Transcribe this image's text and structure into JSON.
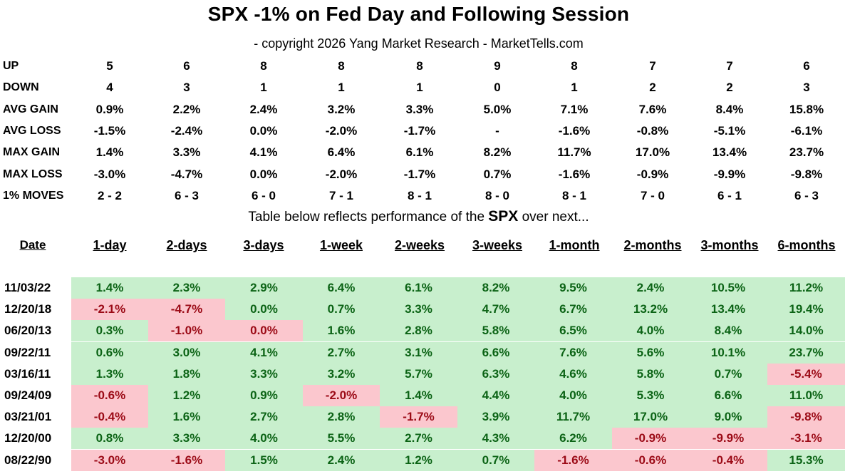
{
  "title": "SPX -1% on Fed Day and Following Session",
  "subtitle": "- copyright 2026 Yang Market Research - MarketTells.com",
  "note": {
    "prefix": "Table below reflects performance of the ",
    "emph": "SPX",
    "suffix": " over next..."
  },
  "stats": [
    {
      "label": "UP",
      "values": [
        "5",
        "6",
        "8",
        "8",
        "8",
        "9",
        "8",
        "7",
        "7",
        "6"
      ]
    },
    {
      "label": "DOWN",
      "values": [
        "4",
        "3",
        "1",
        "1",
        "1",
        "0",
        "1",
        "2",
        "2",
        "3"
      ]
    },
    {
      "label": "AVG GAIN",
      "values": [
        "0.9%",
        "2.2%",
        "2.4%",
        "3.2%",
        "3.3%",
        "5.0%",
        "7.1%",
        "7.6%",
        "8.4%",
        "15.8%"
      ]
    },
    {
      "label": "AVG LOSS",
      "values": [
        "-1.5%",
        "-2.4%",
        "0.0%",
        "-2.0%",
        "-1.7%",
        "-",
        "-1.6%",
        "-0.8%",
        "-5.1%",
        "-6.1%"
      ]
    },
    {
      "label": "MAX GAIN",
      "values": [
        "1.4%",
        "3.3%",
        "4.1%",
        "6.4%",
        "6.1%",
        "8.2%",
        "11.7%",
        "17.0%",
        "13.4%",
        "23.7%"
      ]
    },
    {
      "label": "MAX LOSS",
      "values": [
        "-3.0%",
        "-4.7%",
        "0.0%",
        "-2.0%",
        "-1.7%",
        "0.7%",
        "-1.6%",
        "-0.9%",
        "-9.9%",
        "-9.8%"
      ]
    },
    {
      "label": "1% MOVES",
      "values": [
        "2 - 2",
        "6 - 3",
        "6 - 0",
        "7 - 1",
        "8 - 1",
        "8 - 0",
        "8 - 1",
        "7 - 0",
        "6 - 1",
        "6 - 3"
      ]
    }
  ],
  "colors": {
    "positive_bg": "#c8efcd",
    "positive_text": "#0b6315",
    "negative_bg": "#fbc7ce",
    "negative_text": "#9b0a16"
  },
  "chart_data": {
    "type": "table",
    "title": "SPX -1% on Fed Day and Following Session",
    "columns": [
      "Date",
      "1-day",
      "2-days",
      "3-days",
      "1-week",
      "2-weeks",
      "3-weeks",
      "1-month",
      "2-months",
      "3-months",
      "6-months"
    ],
    "rows": [
      {
        "date": "11/03/22",
        "values": [
          "1.4%",
          "2.3%",
          "2.9%",
          "6.4%",
          "6.1%",
          "8.2%",
          "9.5%",
          "2.4%",
          "10.5%",
          "11.2%"
        ],
        "neg": [
          false,
          false,
          false,
          false,
          false,
          false,
          false,
          false,
          false,
          false
        ]
      },
      {
        "date": "12/20/18",
        "values": [
          "-2.1%",
          "-4.7%",
          "0.0%",
          "0.7%",
          "3.3%",
          "4.7%",
          "6.7%",
          "13.2%",
          "13.4%",
          "19.4%"
        ],
        "neg": [
          true,
          true,
          false,
          false,
          false,
          false,
          false,
          false,
          false,
          false
        ]
      },
      {
        "date": "06/20/13",
        "values": [
          "0.3%",
          "-1.0%",
          "0.0%",
          "1.6%",
          "2.8%",
          "5.8%",
          "6.5%",
          "4.0%",
          "8.4%",
          "14.0%"
        ],
        "neg": [
          false,
          true,
          true,
          false,
          false,
          false,
          false,
          false,
          false,
          false
        ]
      },
      {
        "date": "09/22/11",
        "values": [
          "0.6%",
          "3.0%",
          "4.1%",
          "2.7%",
          "3.1%",
          "6.6%",
          "7.6%",
          "5.6%",
          "10.1%",
          "23.7%"
        ],
        "neg": [
          false,
          false,
          false,
          false,
          false,
          false,
          false,
          false,
          false,
          false
        ]
      },
      {
        "date": "03/16/11",
        "values": [
          "1.3%",
          "1.8%",
          "3.3%",
          "3.2%",
          "5.7%",
          "6.3%",
          "4.6%",
          "5.8%",
          "0.7%",
          "-5.4%"
        ],
        "neg": [
          false,
          false,
          false,
          false,
          false,
          false,
          false,
          false,
          false,
          true
        ]
      },
      {
        "date": "09/24/09",
        "values": [
          "-0.6%",
          "1.2%",
          "0.9%",
          "-2.0%",
          "1.4%",
          "4.4%",
          "4.0%",
          "5.3%",
          "6.6%",
          "11.0%"
        ],
        "neg": [
          true,
          false,
          false,
          true,
          false,
          false,
          false,
          false,
          false,
          false
        ]
      },
      {
        "date": "03/21/01",
        "values": [
          "-0.4%",
          "1.6%",
          "2.7%",
          "2.8%",
          "-1.7%",
          "3.9%",
          "11.7%",
          "17.0%",
          "9.0%",
          "-9.8%"
        ],
        "neg": [
          true,
          false,
          false,
          false,
          true,
          false,
          false,
          false,
          false,
          true
        ]
      },
      {
        "date": "12/20/00",
        "values": [
          "0.8%",
          "3.3%",
          "4.0%",
          "5.5%",
          "2.7%",
          "4.3%",
          "6.2%",
          "-0.9%",
          "-9.9%",
          "-3.1%"
        ],
        "neg": [
          false,
          false,
          false,
          false,
          false,
          false,
          false,
          true,
          true,
          true
        ]
      },
      {
        "date": "08/22/90",
        "values": [
          "-3.0%",
          "-1.6%",
          "1.5%",
          "2.4%",
          "1.2%",
          "0.7%",
          "-1.6%",
          "-0.6%",
          "-0.4%",
          "15.3%"
        ],
        "neg": [
          true,
          true,
          false,
          false,
          false,
          false,
          true,
          true,
          true,
          false
        ]
      }
    ]
  }
}
